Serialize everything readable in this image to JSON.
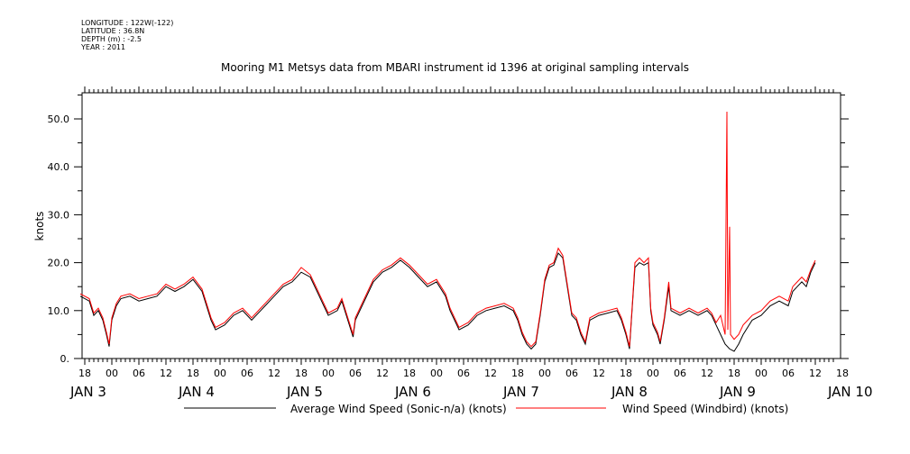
{
  "meta": {
    "longitude": "LONGITUDE : 122W(-122)",
    "latitude": "LATITUDE : 36.8N",
    "depth": "DEPTH (m) : -2.5",
    "year": "YEAR : 2011"
  },
  "chart_data": {
    "type": "line",
    "title": "Mooring M1 Metsys data from MBARI instrument id 1396 at original sampling intervals",
    "ylabel": "knots",
    "xlabel": "",
    "ylim": [
      0,
      55
    ],
    "xlim_hours": [
      -7,
      160
    ],
    "grid": false,
    "legend_position": "bottom",
    "y_ticks": [
      0,
      10,
      20,
      30,
      40,
      50
    ],
    "y_tick_labels": [
      "0.",
      "10.0",
      "20.0",
      "30.0",
      "40.0",
      "50.0"
    ],
    "hour_ticks": [
      {
        "t": -6,
        "label": "18"
      },
      {
        "t": 0,
        "label": "00"
      },
      {
        "t": 6,
        "label": "06"
      },
      {
        "t": 12,
        "label": "12"
      },
      {
        "t": 18,
        "label": "18"
      },
      {
        "t": 24,
        "label": "00"
      },
      {
        "t": 30,
        "label": "06"
      },
      {
        "t": 36,
        "label": "12"
      },
      {
        "t": 42,
        "label": "18"
      },
      {
        "t": 48,
        "label": "00"
      },
      {
        "t": 54,
        "label": "06"
      },
      {
        "t": 60,
        "label": "12"
      },
      {
        "t": 66,
        "label": "18"
      },
      {
        "t": 72,
        "label": "00"
      },
      {
        "t": 78,
        "label": "06"
      },
      {
        "t": 84,
        "label": "12"
      },
      {
        "t": 90,
        "label": "18"
      },
      {
        "t": 96,
        "label": "00"
      },
      {
        "t": 102,
        "label": "06"
      },
      {
        "t": 108,
        "label": "12"
      },
      {
        "t": 114,
        "label": "18"
      },
      {
        "t": 120,
        "label": "00"
      },
      {
        "t": 126,
        "label": "06"
      },
      {
        "t": 132,
        "label": "12"
      },
      {
        "t": 138,
        "label": "18"
      },
      {
        "t": 144,
        "label": "00"
      },
      {
        "t": 150,
        "label": "06"
      },
      {
        "t": 156,
        "label": "12"
      },
      {
        "t": 162,
        "label": "18"
      }
    ],
    "day_labels": [
      {
        "t": 0,
        "label": "JAN  3"
      },
      {
        "t": 24,
        "label": "JAN  4"
      },
      {
        "t": 48,
        "label": "JAN  5"
      },
      {
        "t": 72,
        "label": "JAN  6"
      },
      {
        "t": 96,
        "label": "JAN  7"
      },
      {
        "t": 120,
        "label": "JAN  8"
      },
      {
        "t": 144,
        "label": "JAN  9"
      },
      {
        "t": 168,
        "label": "JAN 10"
      }
    ],
    "series": [
      {
        "name": "Average Wind Speed (Sonic-n/a) (knots)",
        "color": "#000000",
        "points": [
          [
            -7,
            13
          ],
          [
            -5,
            12
          ],
          [
            -4,
            9
          ],
          [
            -3,
            10
          ],
          [
            -2,
            8
          ],
          [
            -1.2,
            5
          ],
          [
            -0.6,
            2.5
          ],
          [
            0,
            8
          ],
          [
            1,
            11
          ],
          [
            2,
            12.5
          ],
          [
            4,
            13
          ],
          [
            6,
            12
          ],
          [
            8,
            12.5
          ],
          [
            10,
            13
          ],
          [
            12,
            15
          ],
          [
            14,
            14
          ],
          [
            16,
            15
          ],
          [
            18,
            16.5
          ],
          [
            20,
            14
          ],
          [
            21,
            11
          ],
          [
            22,
            8
          ],
          [
            23,
            6
          ],
          [
            25,
            7
          ],
          [
            27,
            9
          ],
          [
            29,
            10
          ],
          [
            31,
            8
          ],
          [
            33,
            10
          ],
          [
            34,
            11
          ],
          [
            36,
            13
          ],
          [
            38,
            15
          ],
          [
            40,
            16
          ],
          [
            42,
            18
          ],
          [
            44,
            17
          ],
          [
            45,
            15
          ],
          [
            46,
            13
          ],
          [
            47,
            11
          ],
          [
            48,
            9
          ],
          [
            50,
            10
          ],
          [
            51,
            12
          ],
          [
            52,
            9
          ],
          [
            53,
            6
          ],
          [
            53.5,
            4.5
          ],
          [
            54,
            8
          ],
          [
            56,
            12
          ],
          [
            58,
            16
          ],
          [
            60,
            18
          ],
          [
            62,
            19
          ],
          [
            64,
            20.5
          ],
          [
            66,
            19
          ],
          [
            68,
            17
          ],
          [
            70,
            15
          ],
          [
            72,
            16
          ],
          [
            74,
            13
          ],
          [
            75,
            10
          ],
          [
            76,
            8
          ],
          [
            77,
            6
          ],
          [
            79,
            7
          ],
          [
            81,
            9
          ],
          [
            83,
            10
          ],
          [
            85,
            10.5
          ],
          [
            87,
            11
          ],
          [
            89,
            10
          ],
          [
            90,
            8
          ],
          [
            91,
            5
          ],
          [
            92,
            3
          ],
          [
            93,
            2
          ],
          [
            94,
            3
          ],
          [
            95,
            9
          ],
          [
            96,
            16
          ],
          [
            97,
            19
          ],
          [
            98,
            19.5
          ],
          [
            99,
            22
          ],
          [
            100,
            21
          ],
          [
            101,
            15
          ],
          [
            102,
            9
          ],
          [
            103,
            8
          ],
          [
            104,
            5
          ],
          [
            105,
            3
          ],
          [
            106,
            8
          ],
          [
            108,
            9
          ],
          [
            110,
            9.5
          ],
          [
            112,
            10
          ],
          [
            113,
            8
          ],
          [
            114,
            5
          ],
          [
            114.8,
            2
          ],
          [
            115.5,
            12
          ],
          [
            116,
            19
          ],
          [
            117,
            20
          ],
          [
            118,
            19.5
          ],
          [
            119,
            20
          ],
          [
            119.5,
            10
          ],
          [
            120,
            7
          ],
          [
            121,
            5
          ],
          [
            121.6,
            3
          ],
          [
            122.5,
            8
          ],
          [
            123.5,
            15
          ],
          [
            124,
            10
          ],
          [
            126,
            9
          ],
          [
            128,
            10
          ],
          [
            130,
            9
          ],
          [
            132,
            10
          ],
          [
            133,
            9
          ],
          [
            134,
            7
          ],
          [
            135,
            5
          ],
          [
            136,
            3
          ],
          [
            137,
            2
          ],
          [
            138,
            1.5
          ],
          [
            139,
            3
          ],
          [
            140,
            5
          ],
          [
            142,
            8
          ],
          [
            144,
            9
          ],
          [
            146,
            11
          ],
          [
            148,
            12
          ],
          [
            150,
            11
          ],
          [
            151,
            14
          ],
          [
            152,
            15
          ],
          [
            153,
            16
          ],
          [
            154,
            15
          ],
          [
            155,
            18
          ],
          [
            156,
            20
          ]
        ]
      },
      {
        "name": "Wind Speed (Windbird) (knots)",
        "color": "#ff0000",
        "points": [
          [
            -7,
            13.5
          ],
          [
            -5,
            12.5
          ],
          [
            -4,
            9.5
          ],
          [
            -3,
            10.5
          ],
          [
            -2,
            8.5
          ],
          [
            -1.2,
            5.5
          ],
          [
            -0.6,
            3
          ],
          [
            0,
            8.5
          ],
          [
            1,
            11.5
          ],
          [
            2,
            13
          ],
          [
            4,
            13.5
          ],
          [
            6,
            12.5
          ],
          [
            8,
            13
          ],
          [
            10,
            13.5
          ],
          [
            12,
            15.5
          ],
          [
            14,
            14.5
          ],
          [
            16,
            15.5
          ],
          [
            18,
            17
          ],
          [
            20,
            14.5
          ],
          [
            21,
            11.5
          ],
          [
            22,
            8.5
          ],
          [
            23,
            6.5
          ],
          [
            25,
            7.5
          ],
          [
            27,
            9.5
          ],
          [
            29,
            10.5
          ],
          [
            31,
            8.5
          ],
          [
            33,
            10.5
          ],
          [
            34,
            11.5
          ],
          [
            36,
            13.5
          ],
          [
            38,
            15.5
          ],
          [
            40,
            16.5
          ],
          [
            42,
            19
          ],
          [
            44,
            17.5
          ],
          [
            45,
            15.5
          ],
          [
            46,
            13.5
          ],
          [
            47,
            11.5
          ],
          [
            48,
            9.5
          ],
          [
            50,
            10.5
          ],
          [
            51,
            12.5
          ],
          [
            52,
            9.5
          ],
          [
            53,
            6.5
          ],
          [
            53.5,
            5
          ],
          [
            54,
            8.5
          ],
          [
            56,
            12.5
          ],
          [
            58,
            16.5
          ],
          [
            60,
            18.5
          ],
          [
            62,
            19.5
          ],
          [
            64,
            21
          ],
          [
            66,
            19.5
          ],
          [
            68,
            17.5
          ],
          [
            70,
            15.5
          ],
          [
            72,
            16.5
          ],
          [
            74,
            13.5
          ],
          [
            75,
            10.5
          ],
          [
            76,
            8.5
          ],
          [
            77,
            6.5
          ],
          [
            79,
            7.5
          ],
          [
            81,
            9.5
          ],
          [
            83,
            10.5
          ],
          [
            85,
            11
          ],
          [
            87,
            11.5
          ],
          [
            89,
            10.5
          ],
          [
            90,
            8.5
          ],
          [
            91,
            5.5
          ],
          [
            92,
            3.5
          ],
          [
            93,
            2.5
          ],
          [
            94,
            3.5
          ],
          [
            95,
            9.5
          ],
          [
            96,
            16.5
          ],
          [
            97,
            19.5
          ],
          [
            98,
            20
          ],
          [
            99,
            23
          ],
          [
            100,
            21.5
          ],
          [
            101,
            15.5
          ],
          [
            102,
            9.5
          ],
          [
            103,
            8.5
          ],
          [
            104,
            5.5
          ],
          [
            105,
            3.5
          ],
          [
            106,
            8.5
          ],
          [
            108,
            9.5
          ],
          [
            110,
            10
          ],
          [
            112,
            10.5
          ],
          [
            113,
            8.5
          ],
          [
            114,
            5.5
          ],
          [
            114.8,
            2.5
          ],
          [
            115.5,
            12.5
          ],
          [
            116,
            20
          ],
          [
            117,
            21
          ],
          [
            118,
            20
          ],
          [
            119,
            21
          ],
          [
            119.5,
            10.5
          ],
          [
            120,
            7.5
          ],
          [
            121,
            5.5
          ],
          [
            121.6,
            3.5
          ],
          [
            122.5,
            8.5
          ],
          [
            123.5,
            16
          ],
          [
            124,
            10.5
          ],
          [
            126,
            9.5
          ],
          [
            128,
            10.5
          ],
          [
            130,
            9.5
          ],
          [
            132,
            10.5
          ],
          [
            133,
            9.5
          ],
          [
            134,
            7.5
          ],
          [
            135,
            9
          ],
          [
            136,
            5
          ],
          [
            136.4,
            51.5
          ],
          [
            136.6,
            6
          ],
          [
            137,
            27.5
          ],
          [
            137.2,
            5
          ],
          [
            138,
            4
          ],
          [
            139,
            5
          ],
          [
            140,
            7
          ],
          [
            142,
            9
          ],
          [
            144,
            10
          ],
          [
            146,
            12
          ],
          [
            148,
            13
          ],
          [
            150,
            12
          ],
          [
            151,
            15
          ],
          [
            152,
            16
          ],
          [
            153,
            17
          ],
          [
            154,
            16
          ],
          [
            155,
            18.5
          ],
          [
            156,
            20.5
          ]
        ]
      }
    ]
  }
}
